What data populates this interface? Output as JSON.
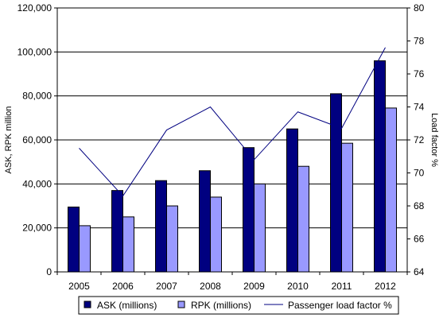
{
  "chart_data": {
    "type": "bar",
    "categories": [
      "2005",
      "2006",
      "2007",
      "2008",
      "2009",
      "2010",
      "2011",
      "2012"
    ],
    "series": [
      {
        "name": "ASK (millions)",
        "type": "bar",
        "axis": "left",
        "color": "#000080",
        "values": [
          29500,
          37000,
          41500,
          46000,
          56500,
          65000,
          81000,
          96000
        ]
      },
      {
        "name": "RPK (millions)",
        "type": "bar",
        "axis": "left",
        "color": "#9999FF",
        "values": [
          21000,
          25000,
          30000,
          34000,
          40000,
          48000,
          58500,
          74500
        ]
      },
      {
        "name": "Passenger load factor %",
        "type": "line",
        "axis": "right",
        "color": "#000080",
        "values": [
          71.5,
          68.6,
          72.6,
          74.0,
          70.8,
          73.7,
          72.7,
          77.6
        ]
      }
    ],
    "ylabel": "ASK, RPK million",
    "ylim": [
      0,
      120000
    ],
    "yticks": [
      "0",
      "20,000",
      "40,000",
      "60,000",
      "80,000",
      "100,000",
      "120,000"
    ],
    "y2label": "Load factor %",
    "y2lim": [
      64,
      80
    ],
    "y2ticks": [
      "64",
      "66",
      "68",
      "70",
      "72",
      "74",
      "76",
      "78",
      "80"
    ],
    "grid": true,
    "legend_position": "bottom"
  }
}
